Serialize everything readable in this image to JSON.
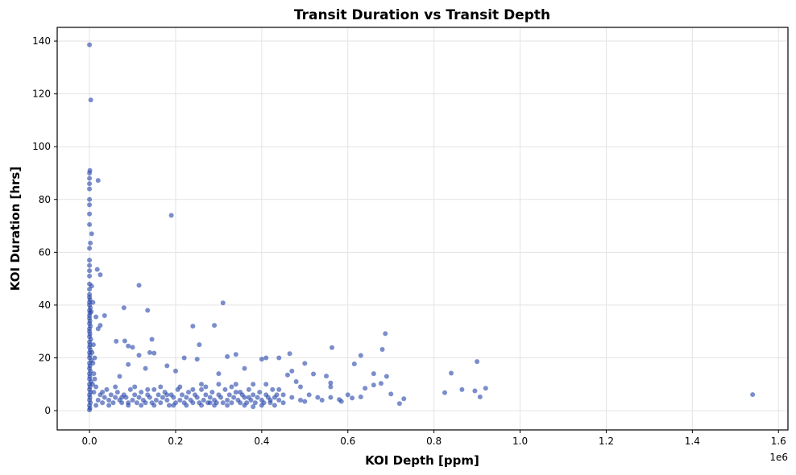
{
  "chart_data": {
    "type": "scatter",
    "title": "Transit Duration vs Transit Depth",
    "xlabel": "KOI Depth [ppm]",
    "ylabel": "KOI Duration [hrs]",
    "x_offset_label": "1e6",
    "xlim": [
      -0.075,
      1.622
    ],
    "ylim": [
      -7.3,
      145.2
    ],
    "xticks": [
      "0.0",
      "0.2",
      "0.4",
      "0.6",
      "0.8",
      "1.0",
      "1.2",
      "1.4",
      "1.6"
    ],
    "xtick_values": [
      0,
      0.2,
      0.4,
      0.6,
      0.8,
      1.0,
      1.2,
      1.4,
      1.6
    ],
    "yticks": [
      "0",
      "20",
      "40",
      "60",
      "80",
      "100",
      "120",
      "140"
    ],
    "ytick_values": [
      0,
      20,
      40,
      60,
      80,
      100,
      120,
      140
    ],
    "grid": true,
    "point_color": "#2342a8",
    "points": [
      [
        0.0,
        138.6
      ],
      [
        0.003,
        117.7
      ],
      [
        0.02,
        87.2
      ],
      [
        0.19,
        74.0
      ],
      [
        0.001,
        91
      ],
      [
        0.0,
        90
      ],
      [
        0.0,
        88
      ],
      [
        0.0,
        86
      ],
      [
        0.0,
        84
      ],
      [
        0.0,
        80
      ],
      [
        0.0,
        78
      ],
      [
        0.0,
        74.5
      ],
      [
        0.0,
        70.5
      ],
      [
        0.005,
        67
      ],
      [
        0.002,
        63.5
      ],
      [
        0.0,
        61.5
      ],
      [
        0.0,
        57
      ],
      [
        0.018,
        53.5
      ],
      [
        0.025,
        51.5
      ],
      [
        0.0,
        48
      ],
      [
        0.005,
        47.2
      ],
      [
        0.115,
        47.5
      ],
      [
        0.31,
        40.8
      ],
      [
        0.008,
        41
      ],
      [
        0.08,
        39
      ],
      [
        0.135,
        38
      ],
      [
        0.035,
        36
      ],
      [
        0.015,
        35.5
      ],
      [
        0.24,
        32
      ],
      [
        0.29,
        32.3
      ],
      [
        0.025,
        32.3
      ],
      [
        0.02,
        31
      ],
      [
        0.0,
        55
      ],
      [
        0.0,
        53
      ],
      [
        0.0,
        51
      ],
      [
        0.0,
        46
      ],
      [
        0.0,
        44
      ],
      [
        0.0,
        43
      ],
      [
        0.001,
        42
      ],
      [
        0.0,
        41
      ],
      [
        0.0,
        40
      ],
      [
        0.002,
        39
      ],
      [
        0.0,
        38
      ],
      [
        0.001,
        37
      ],
      [
        0.004,
        37.5
      ],
      [
        0.0,
        36
      ],
      [
        0.0,
        35
      ],
      [
        0.001,
        34
      ],
      [
        0.0,
        33
      ],
      [
        0.002,
        32
      ],
      [
        0.0,
        31
      ],
      [
        0.0,
        30
      ],
      [
        0.001,
        29
      ],
      [
        0.0,
        28
      ],
      [
        0.003,
        27
      ],
      [
        0.0,
        26
      ],
      [
        0.001,
        25
      ],
      [
        0.0,
        24
      ],
      [
        0.002,
        23
      ],
      [
        0.0,
        22
      ],
      [
        0.001,
        21
      ],
      [
        0.0,
        20
      ],
      [
        0.004,
        19
      ],
      [
        0.0,
        18
      ],
      [
        0.001,
        17
      ],
      [
        0.0,
        16
      ],
      [
        0.002,
        15
      ],
      [
        0.0,
        14
      ],
      [
        0.001,
        13
      ],
      [
        0.0,
        12
      ],
      [
        0.003,
        11
      ],
      [
        0.0,
        10
      ],
      [
        0.001,
        9
      ],
      [
        0.0,
        8
      ],
      [
        0.002,
        7
      ],
      [
        0.0,
        6
      ],
      [
        0.001,
        5
      ],
      [
        0.0,
        4
      ],
      [
        0.002,
        3
      ],
      [
        0.0,
        2
      ],
      [
        0.001,
        1
      ],
      [
        0.0,
        0.3
      ],
      [
        0.006,
        22
      ],
      [
        0.008,
        18
      ],
      [
        0.01,
        14
      ],
      [
        0.012,
        12
      ],
      [
        0.007,
        10
      ],
      [
        0.015,
        9
      ],
      [
        0.01,
        7
      ],
      [
        0.012,
        20
      ],
      [
        0.009,
        25
      ],
      [
        0.687,
        29.2
      ],
      [
        0.145,
        27
      ],
      [
        0.062,
        26.3
      ],
      [
        0.082,
        26.4
      ],
      [
        0.255,
        25
      ],
      [
        0.563,
        23.9
      ],
      [
        0.68,
        23.2
      ],
      [
        0.09,
        24.5
      ],
      [
        0.1,
        24
      ],
      [
        0.14,
        22
      ],
      [
        0.15,
        21.8
      ],
      [
        0.34,
        21.3
      ],
      [
        0.465,
        21.6
      ],
      [
        0.63,
        20.9
      ],
      [
        0.32,
        20.5
      ],
      [
        0.115,
        21
      ],
      [
        0.4,
        19.5
      ],
      [
        0.41,
        20
      ],
      [
        0.44,
        20
      ],
      [
        0.25,
        19.5
      ],
      [
        0.22,
        20
      ],
      [
        0.9,
        18.6
      ],
      [
        0.615,
        17.7
      ],
      [
        0.5,
        17.9
      ],
      [
        0.84,
        14.2
      ],
      [
        0.66,
        14
      ],
      [
        0.69,
        13
      ],
      [
        0.55,
        13.1
      ],
      [
        0.46,
        13.5
      ],
      [
        0.52,
        13.9
      ],
      [
        0.47,
        15
      ],
      [
        0.36,
        16
      ],
      [
        0.3,
        14
      ],
      [
        0.2,
        15
      ],
      [
        0.18,
        17
      ],
      [
        0.13,
        16
      ],
      [
        0.09,
        17.5
      ],
      [
        0.07,
        13
      ],
      [
        0.865,
        8
      ],
      [
        0.895,
        7.5
      ],
      [
        0.92,
        8.5
      ],
      [
        0.825,
        6.8
      ],
      [
        0.907,
        5.2
      ],
      [
        0.7,
        6.3
      ],
      [
        0.73,
        4.5
      ],
      [
        0.72,
        2.7
      ],
      [
        0.6,
        6
      ],
      [
        0.58,
        4.2
      ],
      [
        0.585,
        3.5
      ],
      [
        0.56,
        5
      ],
      [
        0.56,
        9
      ],
      [
        0.56,
        10.5
      ],
      [
        0.64,
        8.5
      ],
      [
        0.66,
        9.7
      ],
      [
        0.677,
        10.3
      ],
      [
        0.63,
        5.2
      ],
      [
        0.61,
        4.8
      ],
      [
        0.54,
        4
      ],
      [
        0.5,
        3.5
      ],
      [
        0.49,
        9
      ],
      [
        0.48,
        11
      ],
      [
        0.45,
        6
      ],
      [
        0.42,
        3
      ],
      [
        0.38,
        1.5
      ],
      [
        0.37,
        5
      ],
      [
        0.35,
        7
      ],
      [
        0.33,
        9
      ],
      [
        0.28,
        3
      ],
      [
        0.26,
        10
      ],
      [
        1.54,
        6.1
      ],
      [
        0.02,
        4
      ],
      [
        0.025,
        6
      ],
      [
        0.03,
        3
      ],
      [
        0.035,
        5
      ],
      [
        0.04,
        8
      ],
      [
        0.045,
        4
      ],
      [
        0.05,
        6
      ],
      [
        0.055,
        3
      ],
      [
        0.06,
        5
      ],
      [
        0.065,
        7
      ],
      [
        0.07,
        4
      ],
      [
        0.075,
        3
      ],
      [
        0.08,
        6
      ],
      [
        0.085,
        5
      ],
      [
        0.09,
        3
      ],
      [
        0.095,
        8
      ],
      [
        0.1,
        4
      ],
      [
        0.105,
        6
      ],
      [
        0.11,
        3
      ],
      [
        0.115,
        5
      ],
      [
        0.12,
        7
      ],
      [
        0.125,
        4
      ],
      [
        0.13,
        3
      ],
      [
        0.135,
        6
      ],
      [
        0.14,
        5
      ],
      [
        0.145,
        3
      ],
      [
        0.15,
        8
      ],
      [
        0.155,
        4
      ],
      [
        0.16,
        6
      ],
      [
        0.165,
        3
      ],
      [
        0.17,
        5
      ],
      [
        0.175,
        7
      ],
      [
        0.18,
        4
      ],
      [
        0.185,
        2
      ],
      [
        0.19,
        6
      ],
      [
        0.195,
        5
      ],
      [
        0.2,
        3
      ],
      [
        0.205,
        8
      ],
      [
        0.21,
        4
      ],
      [
        0.215,
        6
      ],
      [
        0.22,
        3
      ],
      [
        0.225,
        5
      ],
      [
        0.23,
        7
      ],
      [
        0.235,
        4
      ],
      [
        0.24,
        3
      ],
      [
        0.245,
        6
      ],
      [
        0.25,
        5
      ],
      [
        0.255,
        3
      ],
      [
        0.26,
        8
      ],
      [
        0.265,
        4
      ],
      [
        0.27,
        6
      ],
      [
        0.275,
        3
      ],
      [
        0.28,
        5
      ],
      [
        0.285,
        7
      ],
      [
        0.29,
        4
      ],
      [
        0.295,
        3
      ],
      [
        0.3,
        6
      ],
      [
        0.305,
        5
      ],
      [
        0.31,
        3
      ],
      [
        0.315,
        8
      ],
      [
        0.32,
        4
      ],
      [
        0.325,
        6
      ],
      [
        0.33,
        3
      ],
      [
        0.335,
        5
      ],
      [
        0.34,
        7
      ],
      [
        0.345,
        4
      ],
      [
        0.35,
        3
      ],
      [
        0.355,
        6
      ],
      [
        0.36,
        5
      ],
      [
        0.365,
        3
      ],
      [
        0.37,
        8
      ],
      [
        0.375,
        4
      ],
      [
        0.38,
        6
      ],
      [
        0.385,
        3
      ],
      [
        0.39,
        5
      ],
      [
        0.395,
        7
      ],
      [
        0.4,
        4
      ],
      [
        0.405,
        3
      ],
      [
        0.41,
        6
      ],
      [
        0.415,
        5
      ],
      [
        0.42,
        4
      ],
      [
        0.425,
        8
      ],
      [
        0.43,
        5
      ],
      [
        0.435,
        6
      ],
      [
        0.44,
        4
      ],
      [
        0.45,
        3
      ],
      [
        0.015,
        2
      ],
      [
        0.03,
        7
      ],
      [
        0.045,
        2
      ],
      [
        0.06,
        9
      ],
      [
        0.075,
        5
      ],
      [
        0.09,
        2
      ],
      [
        0.105,
        9
      ],
      [
        0.12,
        2
      ],
      [
        0.135,
        8
      ],
      [
        0.15,
        2
      ],
      [
        0.165,
        9
      ],
      [
        0.18,
        6
      ],
      [
        0.195,
        2
      ],
      [
        0.21,
        9
      ],
      [
        0.225,
        2
      ],
      [
        0.24,
        8
      ],
      [
        0.26,
        2
      ],
      [
        0.27,
        9
      ],
      [
        0.29,
        2
      ],
      [
        0.3,
        10
      ],
      [
        0.32,
        2
      ],
      [
        0.34,
        10
      ],
      [
        0.36,
        2
      ],
      [
        0.38,
        10
      ],
      [
        0.4,
        2
      ],
      [
        0.41,
        10
      ],
      [
        0.43,
        2
      ],
      [
        0.44,
        8
      ],
      [
        0.47,
        5
      ],
      [
        0.49,
        4
      ],
      [
        0.51,
        6
      ],
      [
        0.53,
        5
      ]
    ]
  }
}
